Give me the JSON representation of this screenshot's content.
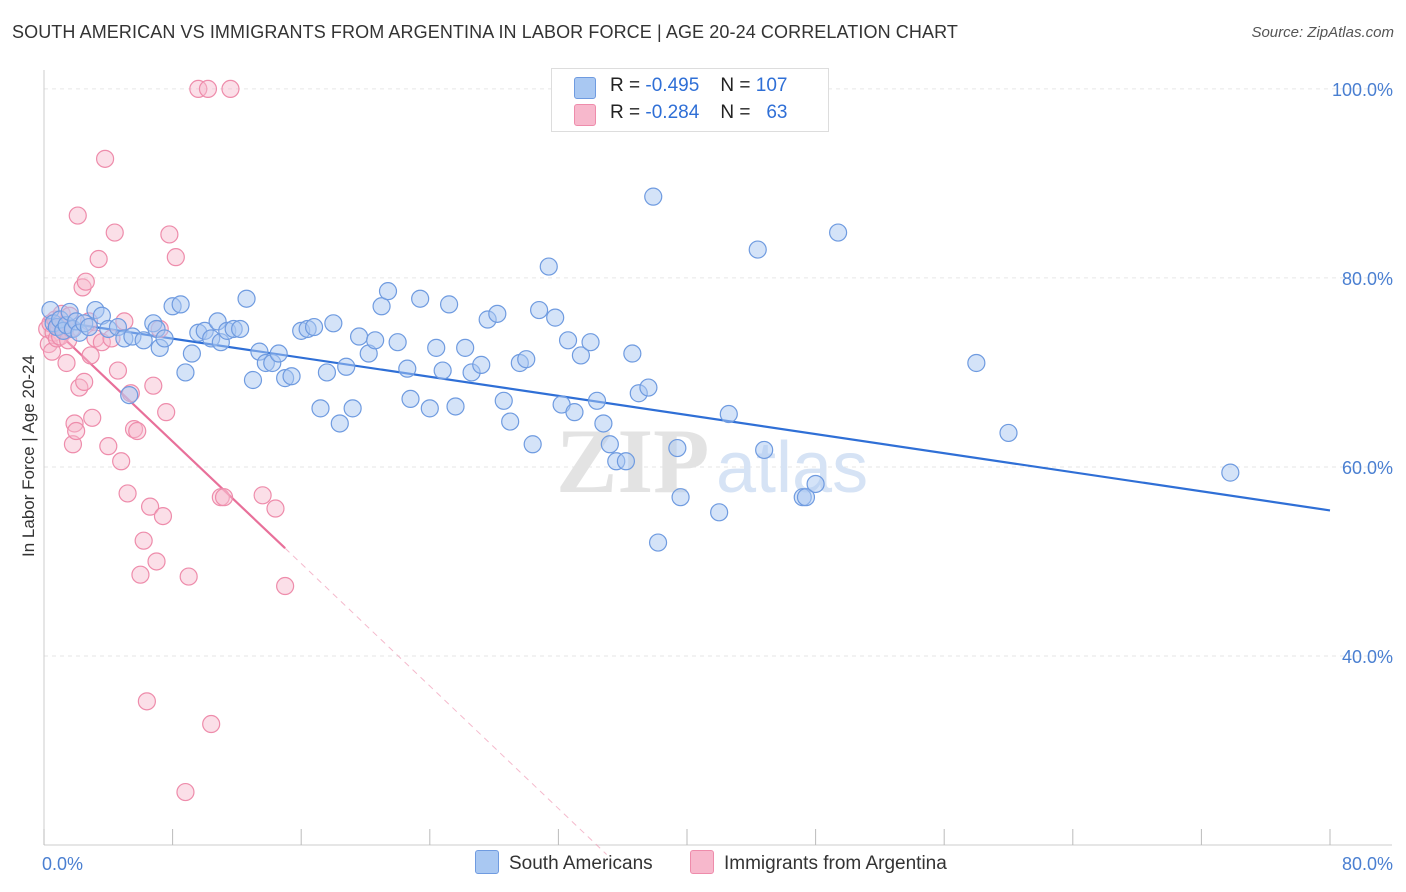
{
  "title": "SOUTH AMERICAN VS IMMIGRANTS FROM ARGENTINA IN LABOR FORCE | AGE 20-24 CORRELATION CHART",
  "source": "Source: ZipAtlas.com",
  "watermark": {
    "zip": "ZIP",
    "atlas": "atlas"
  },
  "legend": {
    "rows": [
      {
        "r_label": "R =",
        "r_value": "-0.495",
        "n_label": "N =",
        "n_value": "107"
      },
      {
        "r_label": "R =",
        "r_value": "-0.284",
        "n_label": "N =",
        "n_value": "63"
      }
    ]
  },
  "bottom_legend": {
    "series1": "South Americans",
    "series2": "Immigrants from Argentina"
  },
  "colors": {
    "blue_fill": "#a9c8f2",
    "blue_stroke": "#6f9be0",
    "blue_line": "#2f6fd6",
    "pink_fill": "#f7b8cc",
    "pink_stroke": "#ee8cab",
    "pink_line": "#e8709a",
    "grid": "#e6e6e6",
    "tick_label": "#4a7fd1"
  },
  "chart_data": {
    "type": "scatter",
    "title": "SOUTH AMERICAN VS IMMIGRANTS FROM ARGENTINA IN LABOR FORCE | AGE 20-24 CORRELATION CHART",
    "xlabel": "",
    "ylabel": "In Labor Force | Age 20-24",
    "xlim": [
      0,
      80
    ],
    "ylim": [
      20,
      102
    ],
    "x_tick_labels": [
      "0.0%",
      "80.0%"
    ],
    "y_ticks": [
      40,
      60,
      80,
      100
    ],
    "y_tick_labels": [
      "40.0%",
      "60.0%",
      "80.0%",
      "100.0%"
    ],
    "grid": true,
    "legend_position": "top-center",
    "series": [
      {
        "name": "South Americans",
        "color": "#6f9be0",
        "R": -0.495,
        "N": 107,
        "trend": {
          "x": [
            0,
            80
          ],
          "y": [
            75.6,
            55.4
          ]
        },
        "points": [
          [
            0.4,
            76.6
          ],
          [
            0.6,
            75.2
          ],
          [
            0.8,
            74.8
          ],
          [
            1.0,
            75.6
          ],
          [
            1.2,
            74.4
          ],
          [
            1.4,
            75.0
          ],
          [
            1.6,
            76.4
          ],
          [
            1.8,
            74.6
          ],
          [
            2.0,
            75.4
          ],
          [
            2.2,
            74.2
          ],
          [
            2.5,
            75.2
          ],
          [
            2.8,
            74.8
          ],
          [
            3.2,
            76.6
          ],
          [
            3.6,
            76.0
          ],
          [
            4.0,
            74.6
          ],
          [
            4.6,
            74.8
          ],
          [
            5.0,
            73.6
          ],
          [
            5.3,
            67.6
          ],
          [
            5.5,
            73.8
          ],
          [
            6.2,
            73.4
          ],
          [
            6.8,
            75.2
          ],
          [
            7.0,
            74.6
          ],
          [
            7.2,
            72.6
          ],
          [
            7.5,
            73.6
          ],
          [
            8.0,
            77.0
          ],
          [
            8.5,
            77.2
          ],
          [
            8.8,
            70.0
          ],
          [
            9.2,
            72.0
          ],
          [
            9.6,
            74.2
          ],
          [
            10.0,
            74.4
          ],
          [
            10.4,
            73.6
          ],
          [
            10.8,
            75.4
          ],
          [
            11.0,
            73.2
          ],
          [
            11.4,
            74.4
          ],
          [
            11.8,
            74.6
          ],
          [
            12.2,
            74.6
          ],
          [
            12.6,
            77.8
          ],
          [
            13.0,
            69.2
          ],
          [
            13.4,
            72.2
          ],
          [
            13.8,
            71.0
          ],
          [
            14.2,
            71.0
          ],
          [
            14.6,
            72.0
          ],
          [
            15.0,
            69.4
          ],
          [
            15.4,
            69.6
          ],
          [
            16.0,
            74.4
          ],
          [
            16.4,
            74.6
          ],
          [
            16.8,
            74.8
          ],
          [
            17.2,
            66.2
          ],
          [
            17.6,
            70.0
          ],
          [
            18.0,
            75.2
          ],
          [
            18.4,
            64.6
          ],
          [
            18.8,
            70.6
          ],
          [
            19.2,
            66.2
          ],
          [
            19.6,
            73.8
          ],
          [
            20.2,
            72.0
          ],
          [
            20.6,
            73.4
          ],
          [
            21.0,
            77.0
          ],
          [
            21.4,
            78.6
          ],
          [
            22.0,
            73.2
          ],
          [
            22.6,
            70.4
          ],
          [
            22.8,
            67.2
          ],
          [
            23.4,
            77.8
          ],
          [
            24.0,
            66.2
          ],
          [
            24.4,
            72.6
          ],
          [
            24.8,
            70.2
          ],
          [
            25.2,
            77.2
          ],
          [
            25.6,
            66.4
          ],
          [
            26.2,
            72.6
          ],
          [
            26.6,
            70.0
          ],
          [
            27.2,
            70.8
          ],
          [
            27.6,
            75.6
          ],
          [
            28.2,
            76.2
          ],
          [
            28.6,
            67.0
          ],
          [
            29.0,
            64.8
          ],
          [
            29.6,
            71.0
          ],
          [
            30.0,
            71.4
          ],
          [
            30.4,
            62.4
          ],
          [
            30.8,
            76.6
          ],
          [
            31.4,
            81.2
          ],
          [
            31.8,
            75.8
          ],
          [
            32.2,
            66.6
          ],
          [
            32.6,
            73.4
          ],
          [
            33.0,
            65.8
          ],
          [
            33.4,
            71.8
          ],
          [
            34.0,
            73.2
          ],
          [
            34.4,
            67.0
          ],
          [
            34.8,
            64.6
          ],
          [
            35.2,
            62.4
          ],
          [
            35.6,
            60.6
          ],
          [
            36.2,
            60.6
          ],
          [
            36.6,
            72.0
          ],
          [
            37.0,
            67.8
          ],
          [
            37.6,
            68.4
          ],
          [
            37.9,
            88.6
          ],
          [
            38.2,
            52.0
          ],
          [
            39.4,
            62.0
          ],
          [
            39.6,
            56.8
          ],
          [
            42.0,
            55.2
          ],
          [
            42.6,
            65.6
          ],
          [
            44.4,
            83.0
          ],
          [
            44.8,
            61.8
          ],
          [
            47.2,
            56.8
          ],
          [
            47.4,
            56.8
          ],
          [
            48.0,
            58.2
          ],
          [
            49.4,
            84.8
          ],
          [
            58.0,
            71.0
          ],
          [
            60.0,
            63.6
          ],
          [
            73.8,
            59.4
          ]
        ]
      },
      {
        "name": "Immigrants from Argentina",
        "color": "#ee8cab",
        "R": -0.284,
        "N": 63,
        "trend": {
          "x": [
            0,
            15.0,
            35.0
          ],
          "y": [
            75.6,
            51.4,
            19.0
          ]
        },
        "points": [
          [
            0.2,
            74.6
          ],
          [
            0.3,
            73.0
          ],
          [
            0.4,
            75.2
          ],
          [
            0.5,
            72.2
          ],
          [
            0.6,
            74.2
          ],
          [
            0.7,
            75.6
          ],
          [
            0.8,
            73.6
          ],
          [
            0.9,
            74.8
          ],
          [
            1.0,
            73.8
          ],
          [
            1.1,
            76.2
          ],
          [
            1.2,
            75.0
          ],
          [
            1.3,
            74.4
          ],
          [
            1.4,
            71.0
          ],
          [
            1.5,
            73.4
          ],
          [
            1.6,
            76.0
          ],
          [
            1.7,
            74.6
          ],
          [
            1.8,
            62.4
          ],
          [
            1.9,
            64.6
          ],
          [
            2.0,
            63.8
          ],
          [
            2.1,
            86.6
          ],
          [
            2.2,
            68.4
          ],
          [
            2.4,
            79.0
          ],
          [
            2.5,
            69.0
          ],
          [
            2.6,
            79.6
          ],
          [
            2.8,
            75.4
          ],
          [
            2.9,
            71.8
          ],
          [
            3.0,
            65.2
          ],
          [
            3.2,
            73.6
          ],
          [
            3.4,
            82.0
          ],
          [
            3.6,
            73.2
          ],
          [
            3.8,
            92.6
          ],
          [
            4.0,
            62.2
          ],
          [
            4.2,
            73.6
          ],
          [
            4.4,
            84.8
          ],
          [
            4.6,
            70.2
          ],
          [
            4.8,
            60.6
          ],
          [
            5.0,
            75.4
          ],
          [
            5.2,
            57.2
          ],
          [
            5.4,
            67.8
          ],
          [
            5.6,
            64.0
          ],
          [
            5.8,
            63.8
          ],
          [
            6.0,
            48.6
          ],
          [
            6.2,
            52.2
          ],
          [
            6.4,
            35.2
          ],
          [
            6.6,
            55.8
          ],
          [
            6.8,
            68.6
          ],
          [
            7.0,
            50.0
          ],
          [
            7.2,
            74.6
          ],
          [
            7.4,
            54.8
          ],
          [
            7.6,
            65.8
          ],
          [
            7.8,
            84.6
          ],
          [
            8.2,
            82.2
          ],
          [
            8.8,
            25.6
          ],
          [
            9.0,
            48.4
          ],
          [
            9.6,
            100.0
          ],
          [
            10.2,
            100.0
          ],
          [
            10.4,
            32.8
          ],
          [
            11.0,
            56.8
          ],
          [
            11.2,
            56.8
          ],
          [
            11.6,
            100.0
          ],
          [
            13.6,
            57.0
          ],
          [
            14.4,
            55.6
          ],
          [
            15.0,
            47.4
          ]
        ]
      }
    ]
  }
}
